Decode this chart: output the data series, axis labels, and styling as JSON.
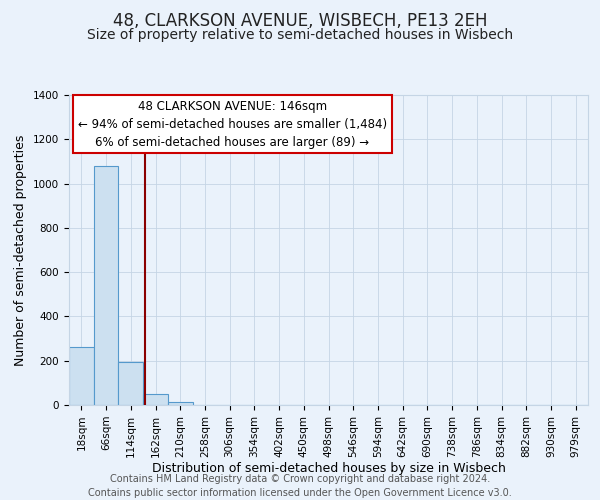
{
  "title": "48, CLARKSON AVENUE, WISBECH, PE13 2EH",
  "subtitle": "Size of property relative to semi-detached houses in Wisbech",
  "xlabel": "Distribution of semi-detached houses by size in Wisbech",
  "ylabel": "Number of semi-detached properties",
  "footer_line1": "Contains HM Land Registry data © Crown copyright and database right 2024.",
  "footer_line2": "Contains public sector information licensed under the Open Government Licence v3.0.",
  "bin_labels": [
    "18sqm",
    "66sqm",
    "114sqm",
    "162sqm",
    "210sqm",
    "258sqm",
    "306sqm",
    "354sqm",
    "402sqm",
    "450sqm",
    "498sqm",
    "546sqm",
    "594sqm",
    "642sqm",
    "690sqm",
    "738sqm",
    "786sqm",
    "834sqm",
    "882sqm",
    "930sqm",
    "979sqm"
  ],
  "bar_values": [
    260,
    1080,
    195,
    50,
    15,
    0,
    0,
    0,
    0,
    0,
    0,
    0,
    0,
    0,
    0,
    0,
    0,
    0,
    0,
    0,
    0
  ],
  "bar_color": "#cce0f0",
  "bar_edge_color": "#5599cc",
  "background_color": "#eaf2fb",
  "grid_color": "#c5d5e5",
  "vline_x": 2.565,
  "vline_color": "#8b0000",
  "ylim": [
    0,
    1400
  ],
  "yticks": [
    0,
    200,
    400,
    600,
    800,
    1000,
    1200,
    1400
  ],
  "annotation_title": "48 CLARKSON AVENUE: 146sqm",
  "annotation_line1": "← 94% of semi-detached houses are smaller (1,484)",
  "annotation_line2": "6% of semi-detached houses are larger (89) →",
  "annotation_box_color": "#ffffff",
  "annotation_box_edge": "#cc0000",
  "title_fontsize": 12,
  "subtitle_fontsize": 10,
  "axis_label_fontsize": 9,
  "tick_fontsize": 7.5,
  "annotation_fontsize": 8.5,
  "footer_fontsize": 7
}
